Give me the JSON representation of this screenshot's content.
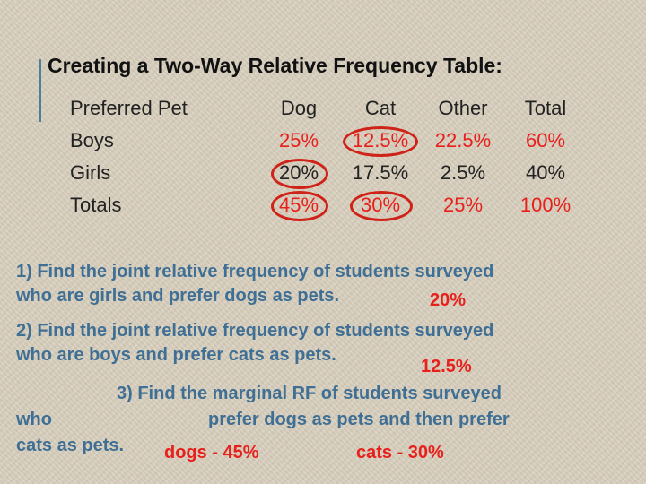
{
  "title": "Creating a Two-Way Relative Frequency Table:",
  "table": {
    "headers": [
      "Preferred Pet",
      "Dog",
      "Cat",
      "Other",
      "Total"
    ],
    "rows": [
      {
        "label": "Boys",
        "values": [
          "25%",
          "12.5%",
          "22.5%",
          "60%"
        ]
      },
      {
        "label": "Girls",
        "values": [
          "20%",
          "17.5%",
          "2.5%",
          "40%"
        ]
      },
      {
        "label": "Totals",
        "values": [
          "45%",
          "30%",
          "25%",
          "100%"
        ]
      }
    ]
  },
  "questions": [
    {
      "line1": "1) Find the joint relative frequency of students surveyed",
      "line2": "who are girls and prefer dogs as pets.",
      "answer": "20%"
    },
    {
      "line1": "2) Find the joint relative frequency of students surveyed",
      "line2": "who are boys and prefer cats as pets.",
      "answer": "12.5%"
    },
    {
      "line1": "3) Find the marginal RF of students surveyed",
      "line2_a": "who",
      "line2_b": "prefer dogs as pets and then prefer",
      "line3": "cats as pets.",
      "answer_dogs": "dogs - 45%",
      "answer_cats": "cats - 30%"
    }
  ],
  "colors": {
    "question_text": "#3f6f94",
    "answer_red": "#e8201c",
    "circle_red": "#cf2218",
    "accent_bar": "#4d7f97",
    "background": "#d8cfbd"
  }
}
